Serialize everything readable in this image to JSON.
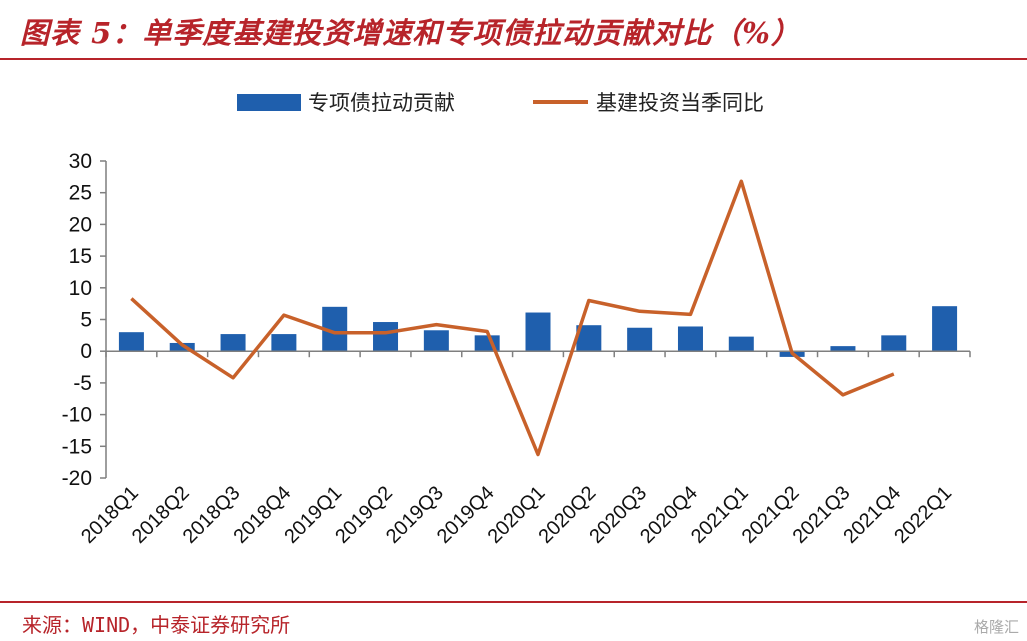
{
  "header": {
    "title": "图表 5：单季度基建投资增速和专项债拉动贡献对比（%）"
  },
  "footer": {
    "source": "来源：WIND，中泰证券研究所",
    "watermark": "格隆汇"
  },
  "colors": {
    "accent": "#b7242a",
    "bar": "#1f5fad",
    "line": "#c8612a"
  },
  "chart_data": {
    "type": "bar",
    "categories": [
      "2018Q1",
      "2018Q2",
      "2018Q3",
      "2018Q4",
      "2019Q1",
      "2019Q2",
      "2019Q3",
      "2019Q4",
      "2020Q1",
      "2020Q2",
      "2020Q3",
      "2020Q4",
      "2021Q1",
      "2021Q2",
      "2021Q3",
      "2021Q4",
      "2022Q1"
    ],
    "series": [
      {
        "name": "专项债拉动贡献",
        "type": "bar",
        "values": [
          3.0,
          1.3,
          2.7,
          2.7,
          7.0,
          4.6,
          3.3,
          2.5,
          6.1,
          4.1,
          3.7,
          3.9,
          2.3,
          -0.9,
          0.8,
          2.5,
          7.1
        ]
      },
      {
        "name": "基建投资当季同比",
        "type": "line",
        "values": [
          8.3,
          1.0,
          -4.2,
          5.7,
          2.9,
          2.9,
          4.2,
          3.1,
          -16.3,
          8.0,
          6.3,
          5.8,
          26.8,
          -0.3,
          -6.9,
          -3.6,
          null
        ]
      }
    ],
    "ylim": [
      -20,
      30
    ],
    "yticks": [
      30,
      25,
      20,
      15,
      10,
      5,
      0,
      -5,
      -10,
      -15,
      -20
    ],
    "legend": "top",
    "grid": false
  }
}
